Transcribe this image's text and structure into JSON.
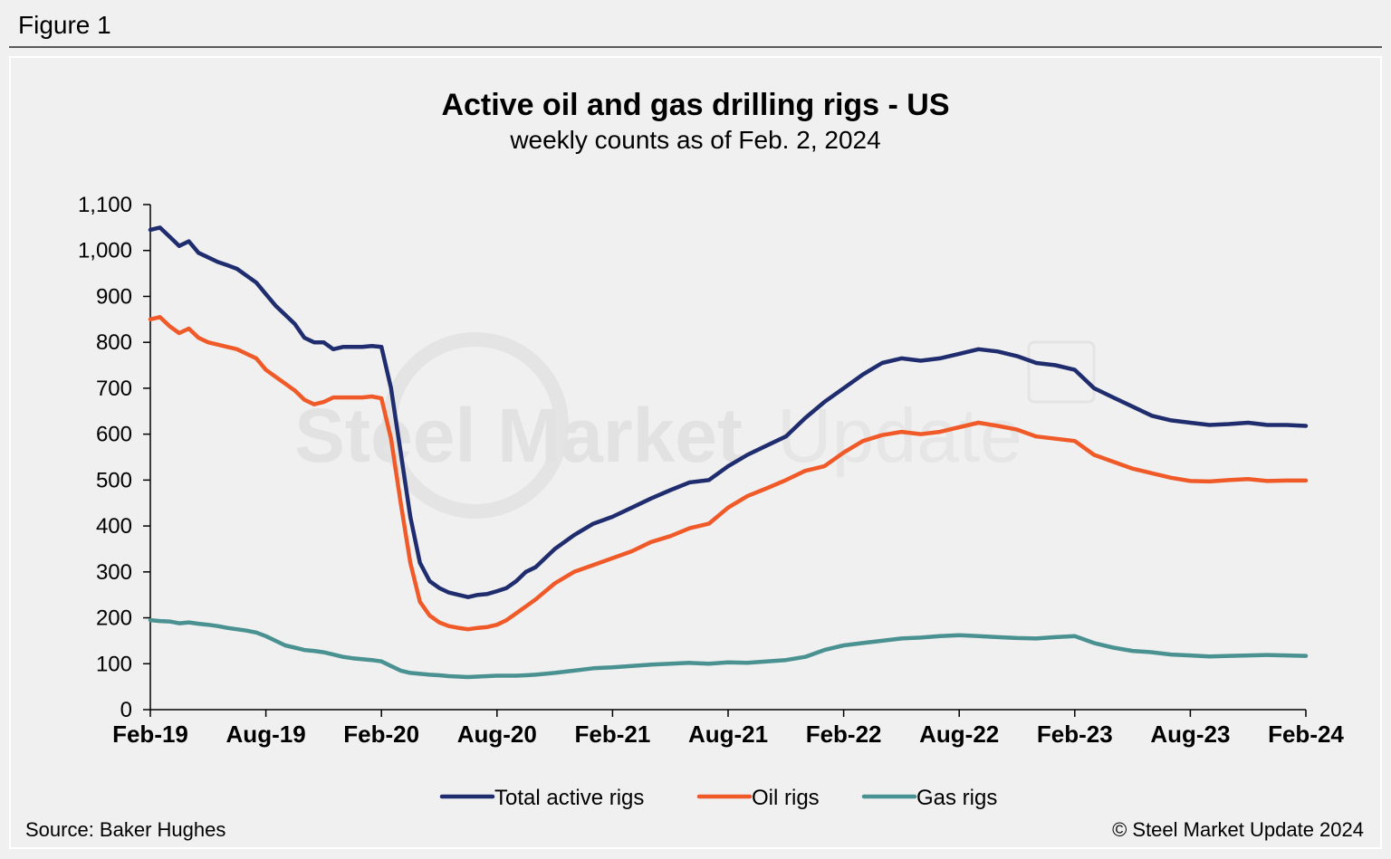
{
  "figure_label": "Figure 1",
  "source": "Source: Baker Hughes",
  "copyright": "© Steel Market Update 2024",
  "watermark": {
    "bold": "Steel Market",
    "light": "Update"
  },
  "chart_data": {
    "type": "line",
    "title": "Active oil and gas drilling rigs - US",
    "subtitle": "weekly counts as of Feb. 2, 2024",
    "xlabel": "",
    "ylabel": "",
    "ylim": [
      0,
      1100
    ],
    "yticks": [
      0,
      100,
      200,
      300,
      400,
      500,
      600,
      700,
      800,
      900,
      1000,
      1100
    ],
    "ytick_labels": [
      "0",
      "100",
      "200",
      "300",
      "400",
      "500",
      "600",
      "700",
      "800",
      "900",
      "1,000",
      "1,100"
    ],
    "x_range": [
      "2019-02",
      "2024-02"
    ],
    "xtick_labels": [
      "Feb-19",
      "Aug-19",
      "Feb-20",
      "Aug-20",
      "Feb-21",
      "Aug-21",
      "Feb-22",
      "Aug-22",
      "Feb-23",
      "Aug-23",
      "Feb-24"
    ],
    "xtick_months": [
      0,
      6,
      12,
      18,
      24,
      30,
      36,
      42,
      48,
      54,
      60
    ],
    "grid": false,
    "legend_position": "bottom-center",
    "x": [
      0,
      0.5,
      1,
      1.5,
      2,
      2.5,
      3,
      3.5,
      4,
      4.5,
      5,
      5.5,
      6,
      6.5,
      7,
      7.5,
      8,
      8.5,
      9,
      9.5,
      10,
      10.5,
      11,
      11.5,
      12,
      12.5,
      13,
      13.5,
      14,
      14.5,
      15,
      15.5,
      16,
      16.5,
      17,
      17.5,
      18,
      18.5,
      19,
      19.5,
      20,
      21,
      22,
      23,
      24,
      25,
      26,
      27,
      28,
      29,
      30,
      31,
      32,
      33,
      34,
      35,
      36,
      37,
      38,
      39,
      40,
      41,
      42,
      43,
      44,
      45,
      46,
      47,
      48,
      49,
      50,
      51,
      52,
      53,
      54,
      55,
      56,
      57,
      58,
      59,
      60
    ],
    "series": [
      {
        "name": "Total active rigs",
        "color": "#1f2d6e",
        "values": [
          1045,
          1050,
          1030,
          1010,
          1020,
          995,
          985,
          975,
          968,
          960,
          945,
          930,
          905,
          880,
          860,
          840,
          810,
          800,
          800,
          785,
          790,
          790,
          790,
          792,
          790,
          700,
          560,
          420,
          320,
          280,
          265,
          255,
          250,
          245,
          250,
          252,
          258,
          265,
          280,
          300,
          310,
          350,
          380,
          405,
          420,
          440,
          460,
          478,
          495,
          500,
          530,
          555,
          575,
          595,
          635,
          670,
          700,
          730,
          755,
          765,
          760,
          765,
          775,
          785,
          780,
          770,
          755,
          750,
          740,
          700,
          680,
          660,
          640,
          630,
          625,
          620,
          622,
          625,
          620,
          620,
          618
        ]
      },
      {
        "name": "Oil rigs",
        "color": "#f05a28",
        "values": [
          850,
          855,
          835,
          820,
          830,
          810,
          800,
          795,
          790,
          785,
          775,
          765,
          740,
          725,
          710,
          695,
          675,
          665,
          670,
          680,
          680,
          680,
          680,
          682,
          678,
          590,
          450,
          320,
          235,
          205,
          190,
          182,
          178,
          175,
          178,
          180,
          185,
          195,
          210,
          225,
          240,
          275,
          300,
          315,
          330,
          345,
          365,
          378,
          395,
          405,
          440,
          465,
          482,
          500,
          520,
          530,
          560,
          585,
          598,
          605,
          600,
          605,
          615,
          625,
          618,
          610,
          595,
          590,
          585,
          555,
          540,
          525,
          515,
          505,
          498,
          497,
          500,
          502,
          498,
          499,
          499
        ]
      },
      {
        "name": "Gas rigs",
        "color": "#4a9192",
        "values": [
          195,
          193,
          192,
          188,
          190,
          187,
          185,
          182,
          178,
          175,
          172,
          168,
          160,
          150,
          140,
          135,
          130,
          128,
          125,
          120,
          115,
          112,
          110,
          108,
          105,
          95,
          85,
          80,
          78,
          76,
          75,
          73,
          72,
          71,
          72,
          73,
          74,
          74,
          74,
          75,
          76,
          80,
          85,
          90,
          92,
          95,
          98,
          100,
          102,
          100,
          103,
          102,
          105,
          108,
          115,
          130,
          140,
          145,
          150,
          155,
          157,
          160,
          162,
          160,
          158,
          156,
          155,
          158,
          160,
          145,
          135,
          128,
          125,
          120,
          118,
          116,
          117,
          118,
          119,
          118,
          117
        ]
      }
    ]
  }
}
